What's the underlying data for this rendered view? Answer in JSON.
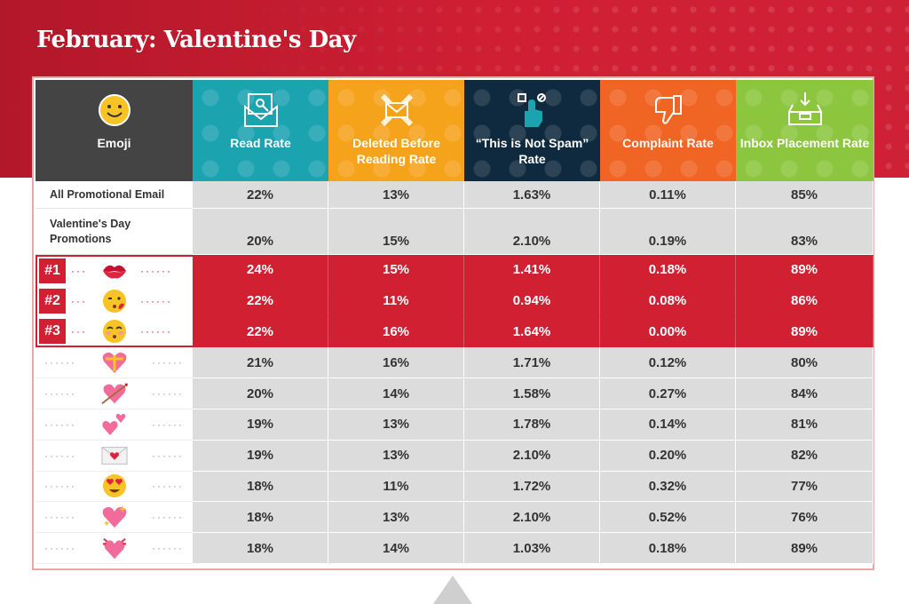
{
  "title": "February: Valentine's Day",
  "colors": {
    "banner": "#c81b2f",
    "highlight": "#d22033",
    "emoji_col": "#444444",
    "read_rate": "#1ba3b0",
    "deleted": "#f6a31c",
    "not_spam": "#0f2a3e",
    "complaint": "#f06424",
    "inbox": "#8cc63f"
  },
  "chart_data": {
    "type": "table",
    "columns": [
      "Emoji",
      "Read Rate",
      "Deleted Before Reading Rate",
      "“This is Not Spam” Rate",
      "Complaint Rate",
      "Inbox Placement Rate"
    ],
    "header_icons": [
      "smiley-face-icon",
      "envelope-open-icon",
      "envelope-x-icon",
      "hand-tap-icon",
      "thumbs-down-icon",
      "inbox-tray-icon"
    ],
    "baseline_rows": [
      {
        "label": "All Promotional Email",
        "values": [
          "22%",
          "13%",
          "1.63%",
          "0.11%",
          "85%"
        ]
      },
      {
        "label": "Valentine's Day Promotions",
        "values": [
          "20%",
          "15%",
          "2.10%",
          "0.19%",
          "83%"
        ]
      }
    ],
    "ranked_rows": [
      {
        "rank": "#1",
        "emoji": "kiss-mark-icon",
        "values": [
          "24%",
          "15%",
          "1.41%",
          "0.18%",
          "89%"
        ]
      },
      {
        "rank": "#2",
        "emoji": "face-blowing-kiss-icon",
        "values": [
          "22%",
          "11%",
          "0.94%",
          "0.08%",
          "86%"
        ]
      },
      {
        "rank": "#3",
        "emoji": "kissing-face-closed-eyes-icon",
        "values": [
          "22%",
          "16%",
          "1.64%",
          "0.00%",
          "89%"
        ]
      }
    ],
    "other_rows": [
      {
        "emoji": "heart-with-ribbon-icon",
        "values": [
          "21%",
          "16%",
          "1.71%",
          "0.12%",
          "80%"
        ]
      },
      {
        "emoji": "heart-with-arrow-icon",
        "values": [
          "20%",
          "14%",
          "1.58%",
          "0.27%",
          "84%"
        ]
      },
      {
        "emoji": "two-hearts-icon",
        "values": [
          "19%",
          "13%",
          "1.78%",
          "0.14%",
          "81%"
        ]
      },
      {
        "emoji": "love-letter-icon",
        "values": [
          "19%",
          "13%",
          "2.10%",
          "0.20%",
          "82%"
        ]
      },
      {
        "emoji": "heart-eyes-face-icon",
        "values": [
          "18%",
          "11%",
          "1.72%",
          "0.32%",
          "77%"
        ]
      },
      {
        "emoji": "sparkling-heart-icon",
        "values": [
          "18%",
          "13%",
          "2.10%",
          "0.52%",
          "76%"
        ]
      },
      {
        "emoji": "beating-heart-icon",
        "values": [
          "18%",
          "14%",
          "1.03%",
          "0.18%",
          "89%"
        ]
      }
    ]
  }
}
